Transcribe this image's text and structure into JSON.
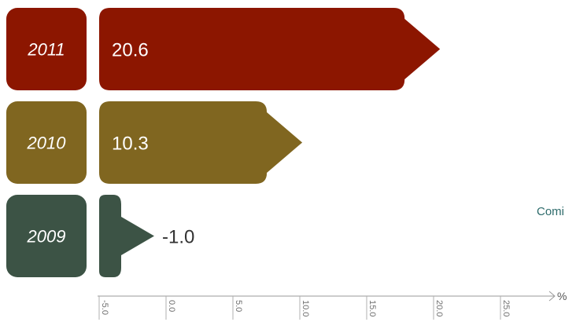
{
  "chart_data": {
    "type": "bar",
    "orientation": "horizontal",
    "categories": [
      "2011",
      "2010",
      "2009"
    ],
    "values": [
      20.6,
      10.3,
      -1.0
    ],
    "value_labels": [
      "20.6",
      "10.3",
      "-1.0"
    ],
    "colors": [
      "#8c1600",
      "#806620",
      "#3c5345"
    ],
    "x_ticks": [
      "-5.0",
      "0.0",
      "5.0",
      "10.0",
      "15.0",
      "20.0",
      "25.0"
    ],
    "x_unit": "%",
    "xlim": [
      -5,
      30
    ],
    "note_text": "Comi",
    "note_color": "#2d6b6b",
    "label_color_inside": "#ffffff",
    "label_color_outside": "#333333",
    "grid": false,
    "legend": "none"
  }
}
